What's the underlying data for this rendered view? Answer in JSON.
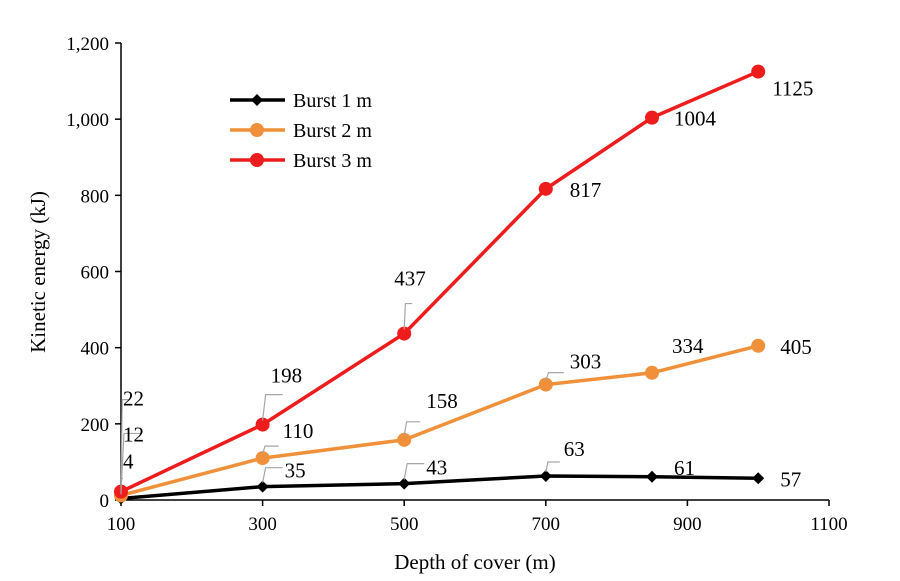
{
  "chart_data": {
    "type": "line",
    "title": "",
    "xlabel": "Depth of cover (m)",
    "ylabel": "Kinetic energy (kJ)",
    "xlim": [
      100,
      1100
    ],
    "ylim": [
      0,
      1200
    ],
    "xticks": [
      100,
      300,
      500,
      700,
      900,
      1100
    ],
    "xtick_labels": [
      "100",
      "300",
      "500",
      "700",
      "900",
      "1100"
    ],
    "yticks": [
      0,
      200,
      400,
      600,
      800,
      1000,
      1200
    ],
    "ytick_labels": [
      "0",
      "200",
      "400",
      "600",
      "800",
      "1,000",
      "1,200"
    ],
    "grid": false,
    "legend_position": "top-left",
    "series": [
      {
        "name": "Burst 1 m",
        "color": "#000000",
        "marker": "diamond",
        "x": [
          100,
          300,
          500,
          700,
          850,
          1000
        ],
        "values": [
          4,
          35,
          43,
          63,
          61,
          57
        ],
        "labels": [
          "4",
          "35",
          "43",
          "63",
          "61",
          "57"
        ]
      },
      {
        "name": "Burst 2 m",
        "color": "#F0903A",
        "marker": "circle",
        "x": [
          100,
          300,
          500,
          700,
          850,
          1000
        ],
        "values": [
          12,
          110,
          158,
          303,
          334,
          405
        ],
        "labels": [
          "12",
          "110",
          "158",
          "303",
          "334",
          "405"
        ]
      },
      {
        "name": "Burst 3 m",
        "color": "#EE1C1C",
        "marker": "circle",
        "x": [
          100,
          300,
          500,
          700,
          850,
          1000
        ],
        "values": [
          22,
          198,
          437,
          817,
          1004,
          1125
        ],
        "labels": [
          "22",
          "198",
          "437",
          "817",
          "1004",
          "1125"
        ]
      }
    ]
  }
}
